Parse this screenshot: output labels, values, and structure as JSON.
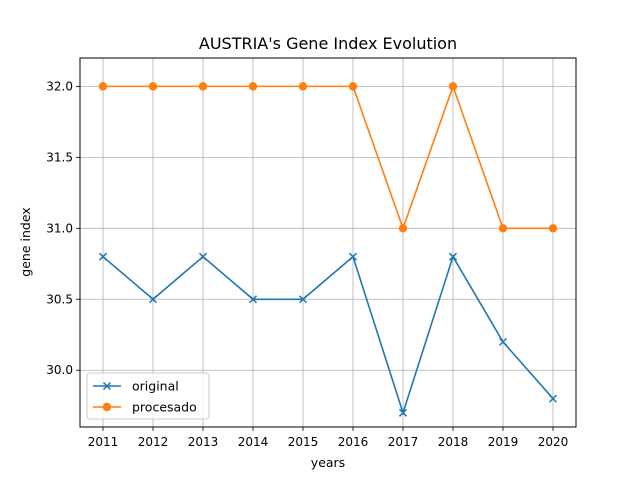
{
  "chart_data": {
    "type": "line",
    "title": "AUSTRIA's Gene Index Evolution",
    "xlabel": "years",
    "ylabel": "gene index",
    "x": [
      "2011",
      "2012",
      "2013",
      "2014",
      "2015",
      "2016",
      "2017",
      "2018",
      "2019",
      "2020"
    ],
    "yticks": [
      "30.0",
      "30.5",
      "31.0",
      "31.5",
      "32.0"
    ],
    "ylim": [
      29.6,
      32.2
    ],
    "grid": true,
    "legend_position": "lower-left",
    "series": [
      {
        "name": "original",
        "values": [
          30.8,
          30.5,
          30.8,
          30.5,
          30.5,
          30.8,
          29.7,
          30.8,
          30.2,
          29.8
        ],
        "marker": "x",
        "color": "#1f77b4"
      },
      {
        "name": "procesado",
        "values": [
          32.0,
          32.0,
          32.0,
          32.0,
          32.0,
          32.0,
          31.0,
          32.0,
          31.0,
          31.0
        ],
        "marker": "circle",
        "color": "#ff7f0e"
      }
    ]
  }
}
